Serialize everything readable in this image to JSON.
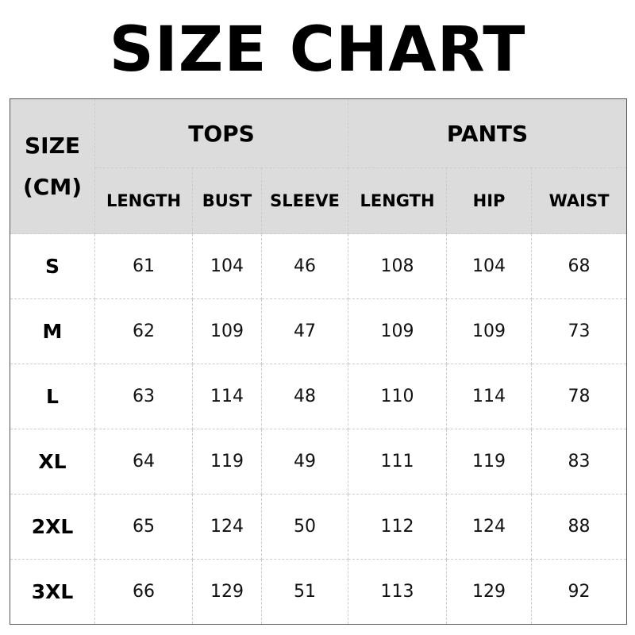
{
  "title": "SIZE CHART",
  "header": {
    "size_label_line1": "SIZE",
    "size_label_line2": "(CM)",
    "groups": [
      "TOPS",
      "PANTS"
    ],
    "columns": [
      "LENGTH",
      "BUST",
      "SLEEVE",
      "LENGTH",
      "HIP",
      "WAIST"
    ]
  },
  "rows": [
    {
      "size": "S",
      "values": [
        "61",
        "104",
        "46",
        "108",
        "104",
        "68"
      ]
    },
    {
      "size": "M",
      "values": [
        "62",
        "109",
        "47",
        "109",
        "109",
        "73"
      ]
    },
    {
      "size": "L",
      "values": [
        "63",
        "114",
        "48",
        "110",
        "114",
        "78"
      ]
    },
    {
      "size": "XL",
      "values": [
        "64",
        "119",
        "49",
        "111",
        "119",
        "83"
      ]
    },
    {
      "size": "2XL",
      "values": [
        "65",
        "124",
        "50",
        "112",
        "124",
        "88"
      ]
    },
    {
      "size": "3XL",
      "values": [
        "66",
        "129",
        "51",
        "113",
        "129",
        "92"
      ]
    }
  ],
  "colors": {
    "header_bg": "#dcdcdc",
    "border": "#555555",
    "grid": "#cccccc"
  }
}
